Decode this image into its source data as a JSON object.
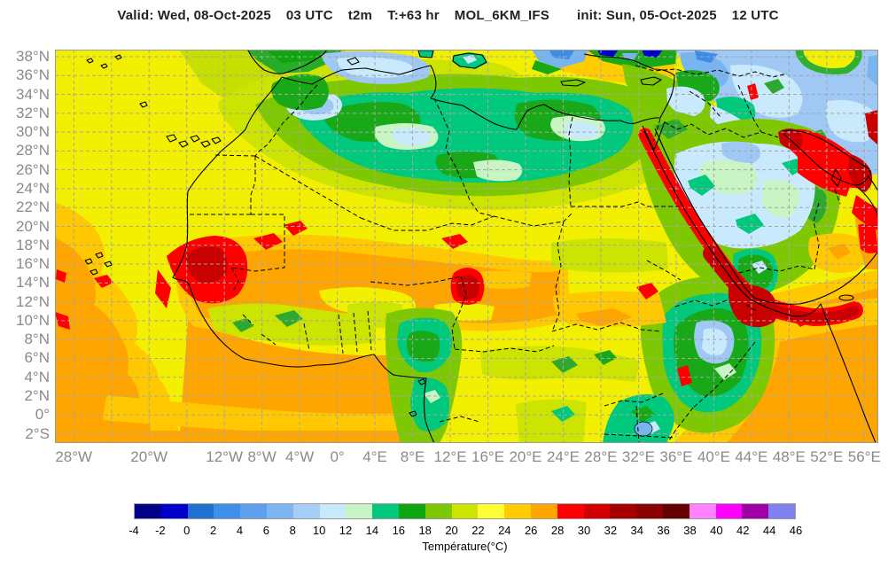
{
  "title": {
    "parts": [
      "Valid: Wed, 08-Oct-2025",
      "03 UTC",
      "t2m",
      "T:+63 hr",
      "MOL_6KM_IFS",
      "init: Sun, 05-Oct-2025",
      "12 UTC"
    ]
  },
  "map": {
    "lat_labels": [
      "38°N",
      "36°N",
      "34°N",
      "32°N",
      "30°N",
      "28°N",
      "26°N",
      "24°N",
      "22°N",
      "20°N",
      "18°N",
      "16°N",
      "14°N",
      "12°N",
      "10°N",
      "8°N",
      "6°N",
      "4°N",
      "2°N",
      "0°",
      "2°S"
    ],
    "lon_labels": [
      "28°W",
      "20°W",
      "12°W",
      "8°W",
      "4°W",
      "0°",
      "4°E",
      "8°E",
      "12°E",
      "16°E",
      "20°E",
      "24°E",
      "28°E",
      "32°E",
      "36°E",
      "40°E",
      "44°E",
      "48°E",
      "52°E",
      "56°E"
    ]
  },
  "colorbar": {
    "label": "Température(°C)",
    "tick_values": [
      -4,
      -2,
      0,
      2,
      4,
      6,
      8,
      10,
      12,
      14,
      16,
      18,
      20,
      22,
      24,
      26,
      28,
      30,
      32,
      34,
      36,
      38,
      40,
      42,
      44,
      46
    ],
    "segment_colors": [
      "#00008B",
      "#0000CD",
      "#2070D0",
      "#3E8EEC",
      "#5FA0EE",
      "#7DB6F2",
      "#A6CFF8",
      "#C8EAFC",
      "#C9F5C4",
      "#00C87D",
      "#0FA50F",
      "#7DC800",
      "#CDE300",
      "#FFFF38",
      "#FFCC00",
      "#FFA500",
      "#FF0000",
      "#D20000",
      "#A80000",
      "#8B0000",
      "#670000",
      "#FF82FF",
      "#FF00FF",
      "#A000A8",
      "#8080F0"
    ]
  }
}
